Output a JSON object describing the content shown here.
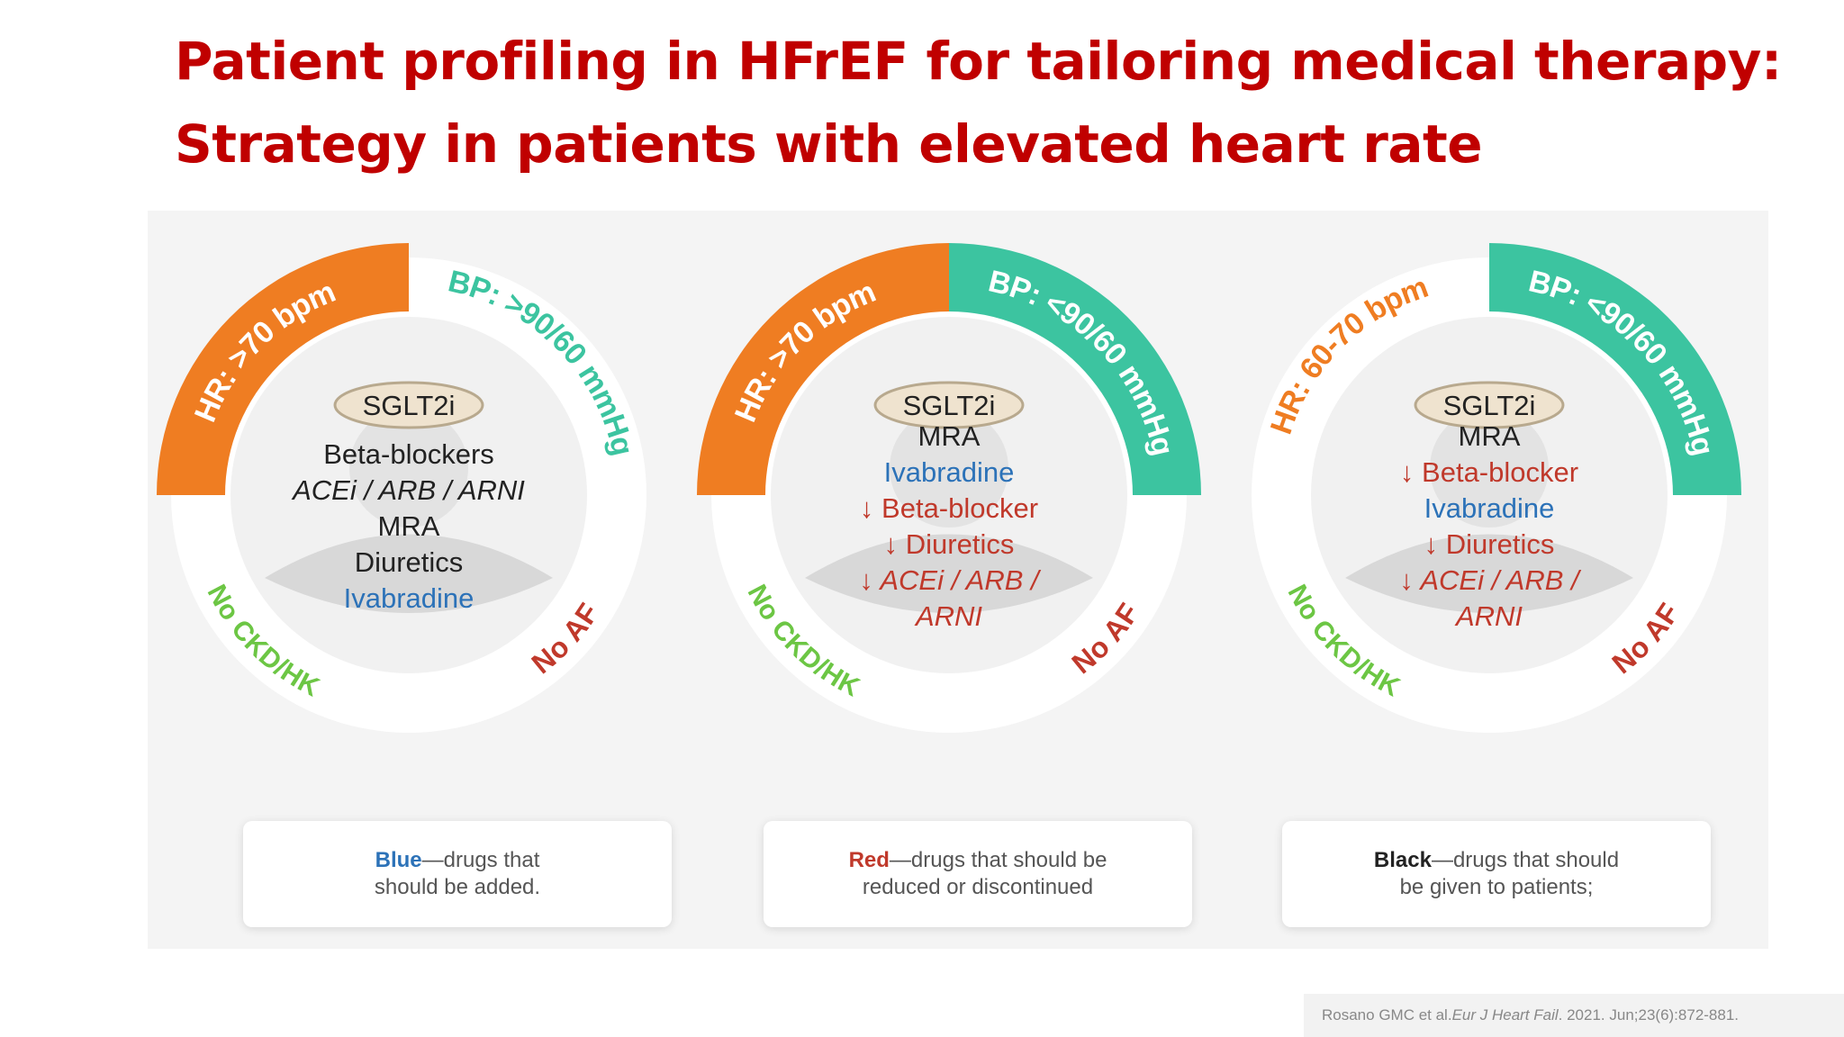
{
  "title": {
    "line1": "Patient profiling in HFrEF for tailoring medical therapy:",
    "line2": "Strategy in patients with elevated heart rate"
  },
  "colors": {
    "title": "#c00000",
    "hr_arc": "#ef7d22",
    "bp_arc": "#3cc4a0",
    "ckd_text": "#6cc644",
    "af_text": "#c0392b",
    "add_drug": "#2c72b8",
    "reduce_drug": "#c0392b",
    "give_drug": "#222222"
  },
  "profiles": [
    {
      "hr_label": "HR: >70 bpm",
      "hr_style": "filled",
      "bp_label": "BP: >90/60 mmHg",
      "bp_style": "outline",
      "ckd_label": "No CKD/HK",
      "af_label": "No AF",
      "sglt2": "SGLT2i",
      "drugs": [
        {
          "text": "Beta-blockers",
          "kind": "give",
          "italic": false
        },
        {
          "text": "ACEi / ARB / ARNI",
          "kind": "give",
          "italic": true
        },
        {
          "text": "MRA",
          "kind": "give",
          "italic": false
        },
        {
          "text": "Diuretics",
          "kind": "give",
          "italic": false
        },
        {
          "text": "Ivabradine",
          "kind": "add",
          "italic": false
        }
      ]
    },
    {
      "hr_label": "HR: >70 bpm",
      "hr_style": "filled",
      "bp_label": "BP: <90/60 mmHg",
      "bp_style": "filled",
      "ckd_label": "No CKD/HK",
      "af_label": "No AF",
      "sglt2": "SGLT2i",
      "drugs": [
        {
          "text": "MRA",
          "kind": "give",
          "italic": false
        },
        {
          "text": "Ivabradine",
          "kind": "add",
          "italic": false
        },
        {
          "text": "↓ Beta-blocker",
          "kind": "reduce",
          "italic": false
        },
        {
          "text": "↓ Diuretics",
          "kind": "reduce",
          "italic": false
        },
        {
          "text": "↓ ACEi / ARB /",
          "kind": "reduce",
          "italic": true
        },
        {
          "text": "ARNI",
          "kind": "reduce",
          "italic": true
        }
      ]
    },
    {
      "hr_label": "HR: 60-70 bpm",
      "hr_style": "outline",
      "bp_label": "BP: <90/60 mmHg",
      "bp_style": "filled",
      "ckd_label": "No CKD/HK",
      "af_label": "No AF",
      "sglt2": "SGLT2i",
      "drugs": [
        {
          "text": "MRA",
          "kind": "give",
          "italic": false
        },
        {
          "text": "↓ Beta-blocker",
          "kind": "reduce",
          "italic": false
        },
        {
          "text": "Ivabradine",
          "kind": "add",
          "italic": false
        },
        {
          "text": "↓ Diuretics",
          "kind": "reduce",
          "italic": false
        },
        {
          "text": "↓ ACEi / ARB /",
          "kind": "reduce",
          "italic": true
        },
        {
          "text": "ARNI",
          "kind": "reduce",
          "italic": true
        }
      ]
    }
  ],
  "legend": [
    {
      "key": "Blue",
      "line1_rest": "—drugs that",
      "line2": "should be added.",
      "kind": "blue"
    },
    {
      "key": "Red",
      "line1_rest": "—drugs that should be",
      "line2": "reduced or discontinued",
      "kind": "red"
    },
    {
      "key": "Black",
      "line1_rest": "—drugs that should",
      "line2": "be given to patients;",
      "kind": "black"
    }
  ],
  "citation": {
    "authors": "Rosano GMC et al. ",
    "journal": "Eur J Heart Fail",
    "rest": ". 2021. Jun;23(6):872-881."
  }
}
